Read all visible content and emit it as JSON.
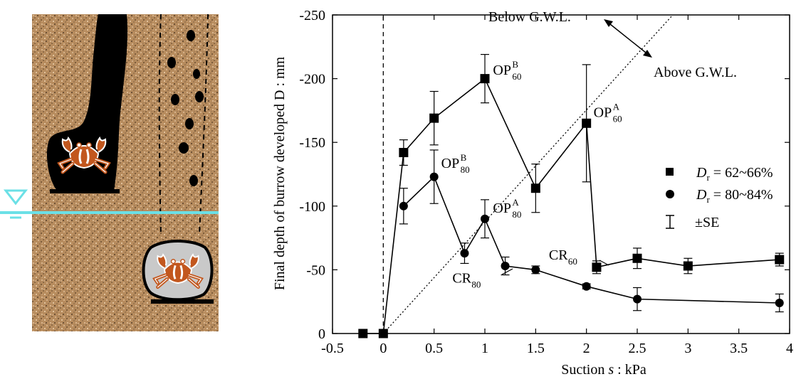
{
  "chart_data": {
    "type": "scatter",
    "xlabel_main": "Suction ",
    "xlabel_sym": "s",
    "xlabel_unit": " : kPa",
    "ylabel": "Final depth of burrow developed D : mm",
    "xlim": [
      -0.5,
      4.0
    ],
    "ylim": [
      0,
      -250
    ],
    "x_ticks": [
      -0.5,
      0,
      0.5,
      1,
      1.5,
      2,
      2.5,
      3,
      3.5,
      4
    ],
    "x_tick_labels": [
      "-0.5",
      "0",
      "0.5",
      "1",
      "1.5",
      "2",
      "2.5",
      "3",
      "3.5",
      "4"
    ],
    "y_ticks": [
      0,
      -50,
      -100,
      -150,
      -200,
      -250
    ],
    "y_tick_labels": [
      "0",
      "-50",
      "-100",
      "-150",
      "-200",
      "-250"
    ],
    "grid": false,
    "legend_placement": "right",
    "series": [
      {
        "legend_sym": "D",
        "legend_sub": "r",
        "legend_rest": " = 62~66%",
        "marker": "square",
        "x": [
          -0.2,
          0,
          0.2,
          0.5,
          1.0,
          1.5,
          2.0,
          2.1,
          2.5,
          3.0,
          3.9
        ],
        "y": [
          0,
          0,
          -142,
          -169,
          -200,
          -114,
          -165,
          -52,
          -59,
          -53,
          -58
        ],
        "se": [
          0,
          0,
          10,
          21,
          19,
          19,
          46,
          5,
          8,
          6,
          5
        ]
      },
      {
        "legend_sym": "D",
        "legend_sub": "r",
        "legend_rest": " = 80~84%",
        "marker": "circle",
        "x": [
          0.2,
          0.5,
          0.8,
          1.0,
          1.2,
          1.5,
          2.0,
          2.5,
          3.9
        ],
        "y": [
          -100,
          -123,
          -63,
          -90,
          -53,
          -50,
          -37,
          -27,
          -24
        ],
        "se": [
          14,
          21,
          8,
          15,
          7,
          3,
          2,
          9,
          7
        ]
      }
    ],
    "se_legend": "±SE",
    "reference_lines": [
      {
        "style": "dashed",
        "x1": 0,
        "y1": 0,
        "x2": 0,
        "y2": -250
      },
      {
        "style": "dotted",
        "x1": 0,
        "y1": 0,
        "x2": 2.85,
        "y2": -250
      }
    ],
    "annotations": [
      {
        "main": "OP",
        "sup": "B",
        "sub": "60",
        "x": 1.08,
        "y": -203
      },
      {
        "main": "OP",
        "sup": "A",
        "sub": "60",
        "x": 2.07,
        "y": -170
      },
      {
        "main": "OP",
        "sup": "B",
        "sub": "80",
        "x": 0.57,
        "y": -130
      },
      {
        "main": "OP",
        "sup": "A",
        "sub": "80",
        "x": 1.08,
        "y": -95
      },
      {
        "main": "CR",
        "sup": "",
        "sub": "80",
        "x": 0.68,
        "y": -40
      },
      {
        "main": "CR",
        "sup": "",
        "sub": "60",
        "x": 1.63,
        "y": -58
      }
    ],
    "gwl_below": "Below G.W.L.",
    "gwl_above": "Above G.W.L."
  },
  "colors": {
    "sand": "#b58b5e",
    "burrow": "#000000",
    "water_line": "#6be0e6",
    "chamber_fill": "#c9c9c9",
    "crab": "#c2571e"
  }
}
